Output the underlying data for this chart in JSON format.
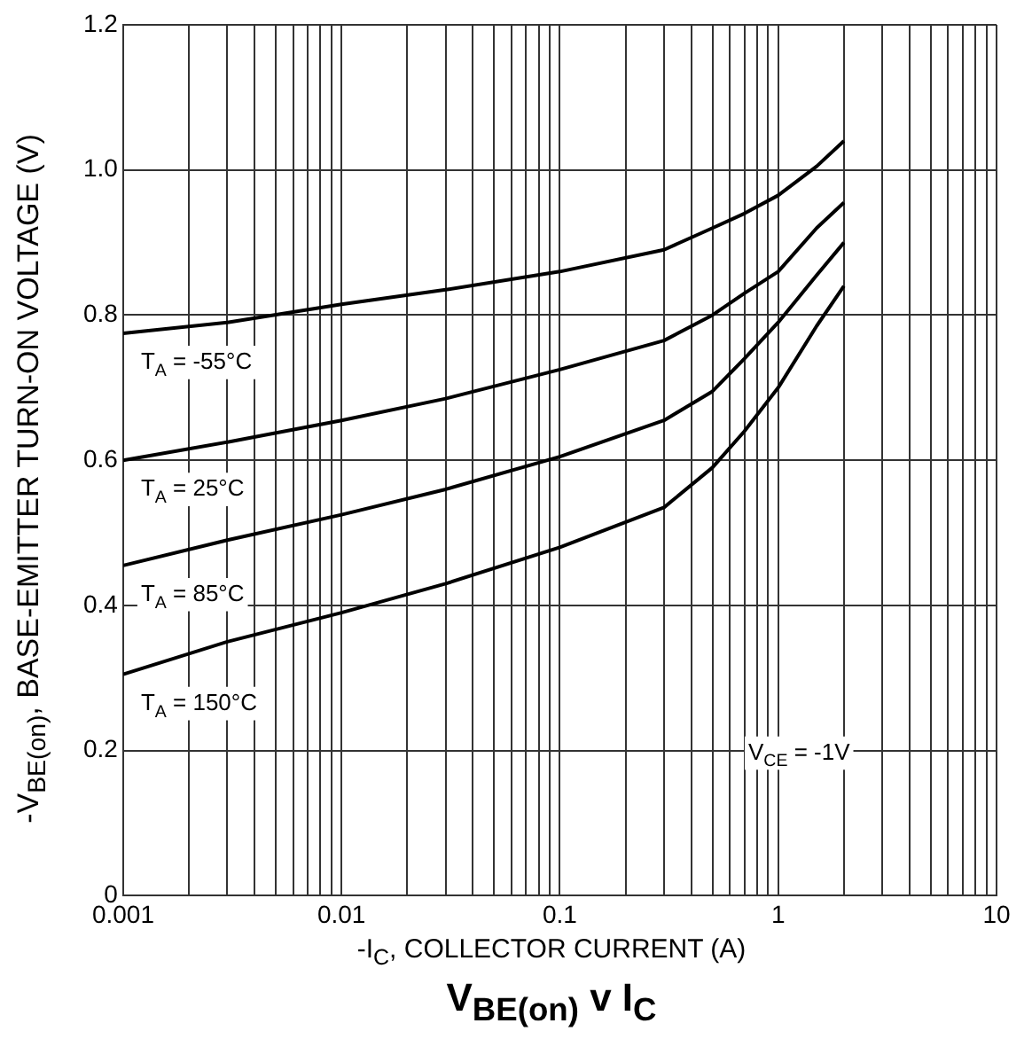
{
  "chart_data": {
    "type": "line",
    "title": "V$_{BE(on)}$ v I$_{C}$",
    "xlabel": "-I$_{C}$, COLLECTOR CURRENT (A)",
    "ylabel": "-V$_{BE(on)}$, BASE-EMITTER TURN-ON VOLTAGE (V)",
    "x": [
      0.001,
      0.003,
      0.01,
      0.03,
      0.1,
      0.3,
      0.5,
      0.7,
      1,
      1.5,
      2
    ],
    "series": [
      {
        "name": "T$_{A}$ = -55°C",
        "color": "#000000",
        "values": [
          0.775,
          0.79,
          0.815,
          0.835,
          0.86,
          0.89,
          0.92,
          0.94,
          0.965,
          1.005,
          1.04
        ]
      },
      {
        "name": "T$_{A}$ = 25°C",
        "color": "#000000",
        "values": [
          0.6,
          0.625,
          0.655,
          0.685,
          0.725,
          0.765,
          0.8,
          0.83,
          0.86,
          0.92,
          0.955
        ]
      },
      {
        "name": "T$_{A}$ = 85°C",
        "color": "#000000",
        "values": [
          0.455,
          0.49,
          0.525,
          0.56,
          0.605,
          0.655,
          0.695,
          0.74,
          0.79,
          0.855,
          0.9
        ]
      },
      {
        "name": "T$_{A}$ = 150°C",
        "color": "#000000",
        "values": [
          0.305,
          0.35,
          0.39,
          0.43,
          0.48,
          0.535,
          0.59,
          0.64,
          0.7,
          0.785,
          0.84
        ]
      }
    ],
    "annotations": [
      "V$_{CE}$ = -1V"
    ],
    "log": "x",
    "grid": true,
    "legend": false,
    "xlim": [
      0.001,
      10
    ],
    "xticks": [
      0.001,
      {
        "value": 0.002,
        "label": null
      },
      {
        "value": 0.003,
        "label": null
      },
      {
        "value": 0.004,
        "label": null
      },
      {
        "value": 0.005,
        "label": null
      },
      {
        "value": 0.006,
        "label": null
      },
      {
        "value": 0.007,
        "label": null
      },
      {
        "value": 0.008,
        "label": null
      },
      {
        "value": 0.009,
        "label": null
      },
      0.01,
      {
        "value": 0.02,
        "label": null
      },
      {
        "value": 0.03,
        "label": null
      },
      {
        "value": 0.04,
        "label": null
      },
      {
        "value": 0.05,
        "label": null
      },
      {
        "value": 0.06,
        "label": null
      },
      {
        "value": 0.07,
        "label": null
      },
      {
        "value": 0.08,
        "label": null
      },
      {
        "value": 0.09,
        "label": null
      },
      0.1,
      {
        "value": 0.2,
        "label": null
      },
      {
        "value": 0.3,
        "label": null
      },
      {
        "value": 0.4,
        "label": null
      },
      {
        "value": 0.5,
        "label": null
      },
      {
        "value": 0.6,
        "label": null
      },
      {
        "value": 0.7,
        "label": null
      },
      {
        "value": 0.8,
        "label": null
      },
      {
        "value": 0.9,
        "label": null
      },
      1,
      {
        "value": 2,
        "label": null
      },
      {
        "value": 3,
        "label": null
      },
      {
        "value": 4,
        "label": null
      },
      {
        "value": 5,
        "label": null
      },
      {
        "value": 6,
        "label": null
      },
      {
        "value": 7,
        "label": null
      },
      {
        "value": 8,
        "label": null
      },
      {
        "value": 9,
        "label": null
      },
      10
    ],
    "ylim": [
      0,
      1.2
    ],
    "yticks": [
      0,
      0.2,
      0.4,
      0.6,
      0.8,
      {
        "value": 1,
        "label": "1.0"
      },
      1.2
    ]
  }
}
